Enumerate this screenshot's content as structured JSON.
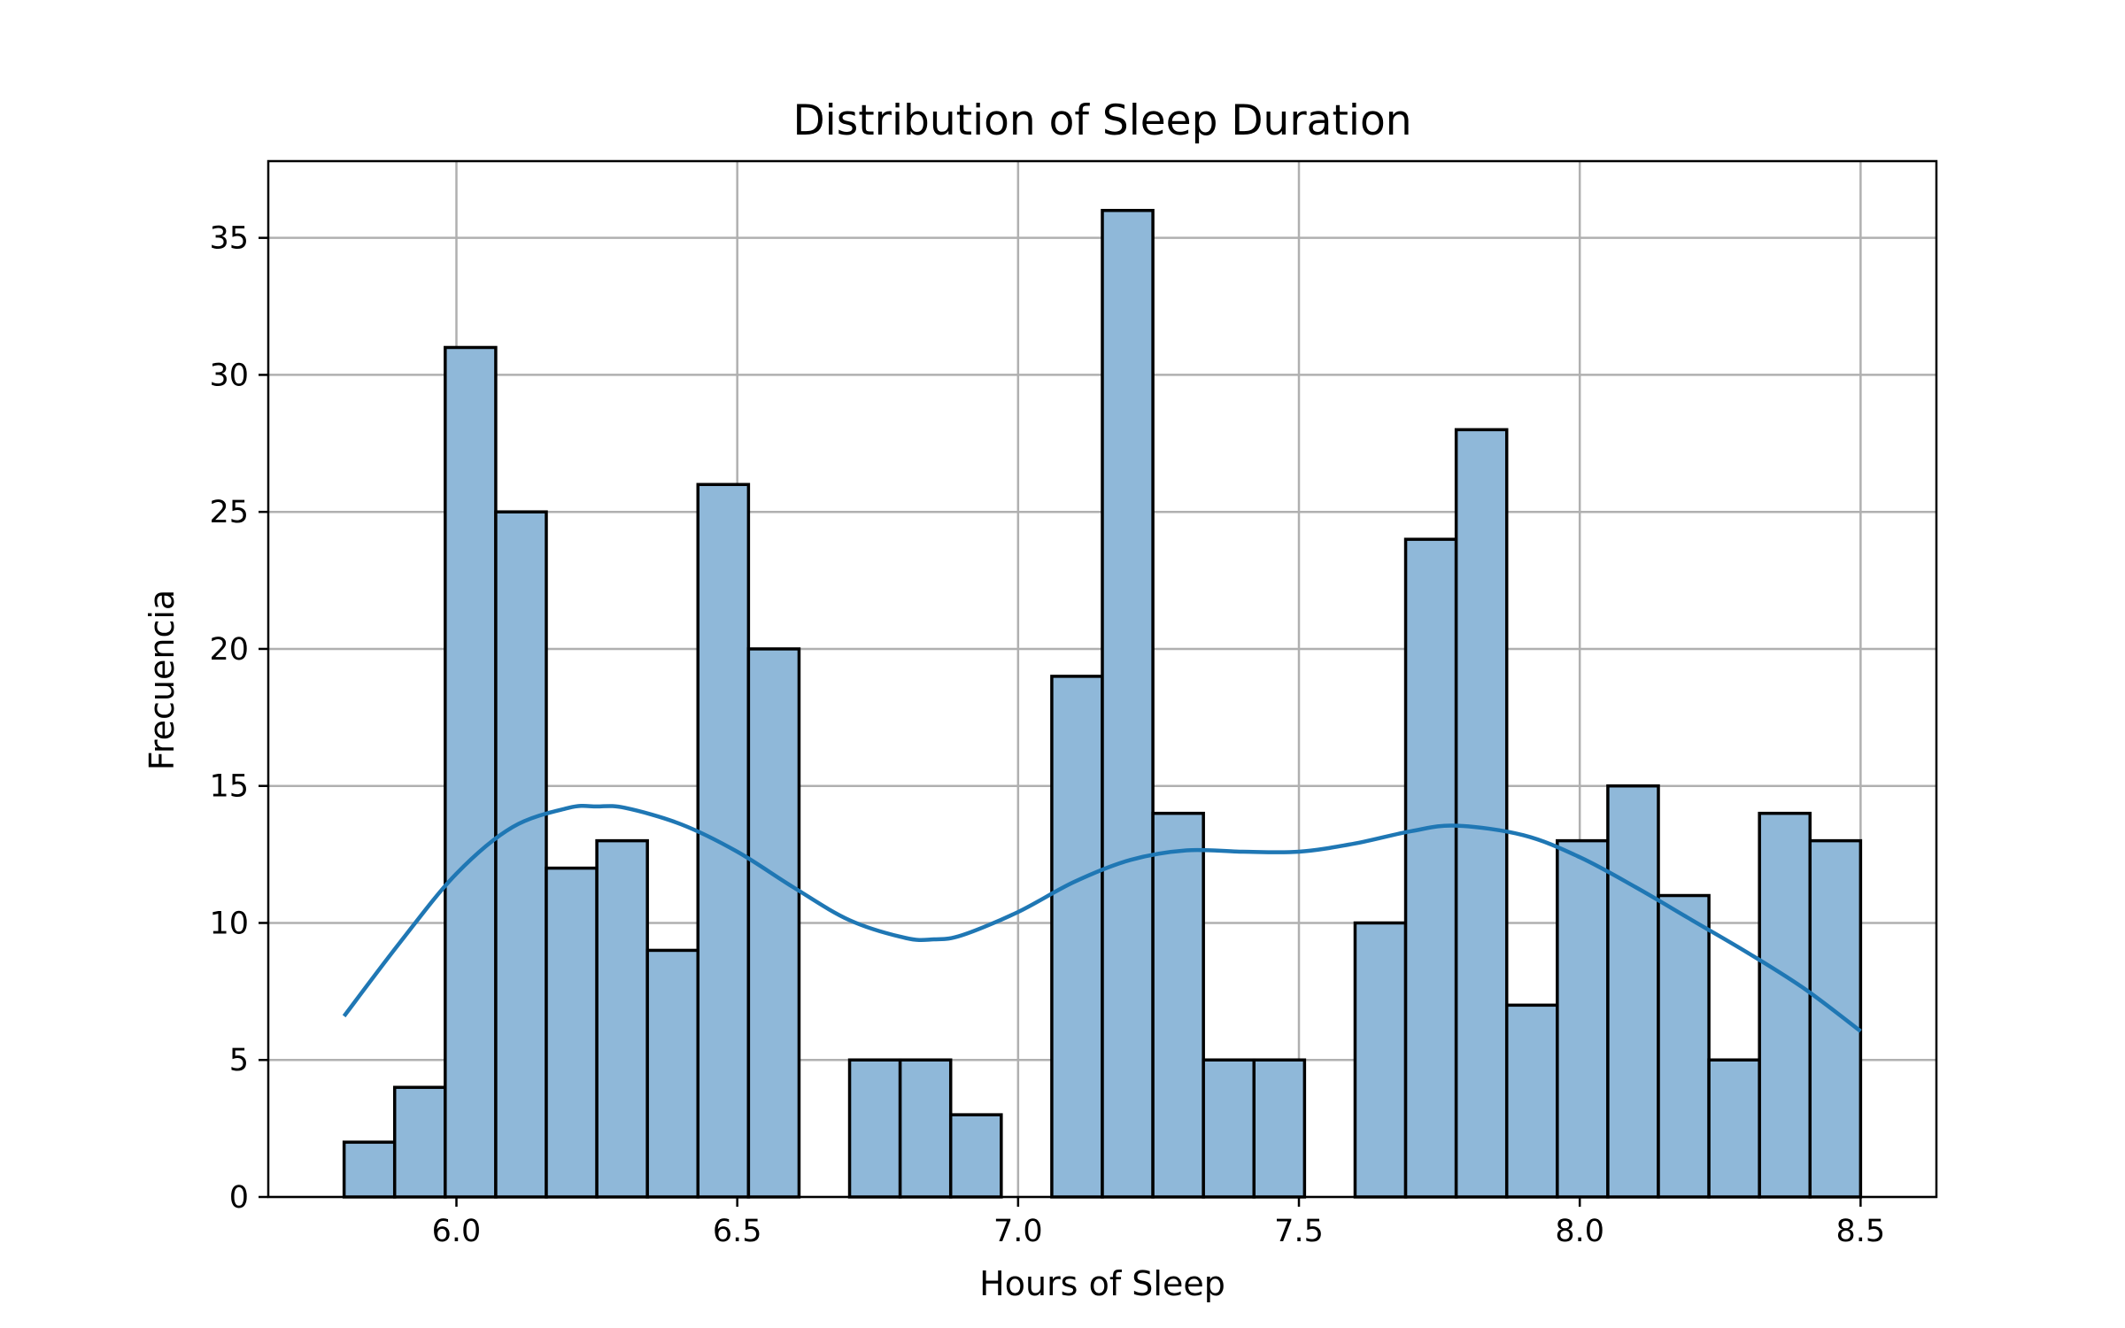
{
  "chart_data": {
    "type": "bar",
    "title": "Distribution of Sleep Duration",
    "xlabel": "Hours of Sleep",
    "ylabel": "Frecuencia",
    "xlim": [
      5.665,
      8.635
    ],
    "ylim": [
      0,
      37.8
    ],
    "grid": true,
    "bin_start": 5.8,
    "bin_width": 0.09,
    "bins": [
      {
        "x": 5.845,
        "count": 2
      },
      {
        "x": 5.935,
        "count": 4
      },
      {
        "x": 6.025,
        "count": 31
      },
      {
        "x": 6.115,
        "count": 25
      },
      {
        "x": 6.205,
        "count": 12
      },
      {
        "x": 6.295,
        "count": 13
      },
      {
        "x": 6.385,
        "count": 9
      },
      {
        "x": 6.475,
        "count": 26
      },
      {
        "x": 6.565,
        "count": 20
      },
      {
        "x": 6.655,
        "count": 0
      },
      {
        "x": 6.745,
        "count": 5
      },
      {
        "x": 6.835,
        "count": 5
      },
      {
        "x": 6.925,
        "count": 3
      },
      {
        "x": 7.015,
        "count": 0
      },
      {
        "x": 7.105,
        "count": 19
      },
      {
        "x": 7.195,
        "count": 36
      },
      {
        "x": 7.285,
        "count": 14
      },
      {
        "x": 7.375,
        "count": 5
      },
      {
        "x": 7.465,
        "count": 5
      },
      {
        "x": 7.555,
        "count": 0
      },
      {
        "x": 7.645,
        "count": 10
      },
      {
        "x": 7.735,
        "count": 24
      },
      {
        "x": 7.825,
        "count": 28
      },
      {
        "x": 7.915,
        "count": 7
      },
      {
        "x": 8.005,
        "count": 13
      },
      {
        "x": 8.095,
        "count": 15
      },
      {
        "x": 8.185,
        "count": 11
      },
      {
        "x": 8.275,
        "count": 5
      },
      {
        "x": 8.365,
        "count": 14
      },
      {
        "x": 8.455,
        "count": 13
      }
    ],
    "kde": [
      {
        "x": 5.8,
        "y": 6.6
      },
      {
        "x": 5.9,
        "y": 9.3
      },
      {
        "x": 6.0,
        "y": 11.8
      },
      {
        "x": 6.1,
        "y": 13.5
      },
      {
        "x": 6.2,
        "y": 14.2
      },
      {
        "x": 6.25,
        "y": 14.25
      },
      {
        "x": 6.3,
        "y": 14.2
      },
      {
        "x": 6.4,
        "y": 13.6
      },
      {
        "x": 6.5,
        "y": 12.6
      },
      {
        "x": 6.6,
        "y": 11.3
      },
      {
        "x": 6.7,
        "y": 10.1
      },
      {
        "x": 6.8,
        "y": 9.45
      },
      {
        "x": 6.85,
        "y": 9.4
      },
      {
        "x": 6.9,
        "y": 9.55
      },
      {
        "x": 7.0,
        "y": 10.4
      },
      {
        "x": 7.1,
        "y": 11.5
      },
      {
        "x": 7.2,
        "y": 12.3
      },
      {
        "x": 7.3,
        "y": 12.65
      },
      {
        "x": 7.4,
        "y": 12.6
      },
      {
        "x": 7.5,
        "y": 12.6
      },
      {
        "x": 7.6,
        "y": 12.9
      },
      {
        "x": 7.7,
        "y": 13.35
      },
      {
        "x": 7.78,
        "y": 13.55
      },
      {
        "x": 7.9,
        "y": 13.2
      },
      {
        "x": 8.0,
        "y": 12.4
      },
      {
        "x": 8.1,
        "y": 11.3
      },
      {
        "x": 8.2,
        "y": 10.1
      },
      {
        "x": 8.3,
        "y": 8.9
      },
      {
        "x": 8.4,
        "y": 7.6
      },
      {
        "x": 8.5,
        "y": 6.05
      }
    ],
    "xticks": [
      {
        "value": 6.0,
        "label": "6.0"
      },
      {
        "value": 6.5,
        "label": "6.5"
      },
      {
        "value": 7.0,
        "label": "7.0"
      },
      {
        "value": 7.5,
        "label": "7.5"
      },
      {
        "value": 8.0,
        "label": "8.0"
      },
      {
        "value": 8.5,
        "label": "8.5"
      }
    ],
    "yticks": [
      {
        "value": 0,
        "label": "0"
      },
      {
        "value": 5,
        "label": "5"
      },
      {
        "value": 10,
        "label": "10"
      },
      {
        "value": 15,
        "label": "15"
      },
      {
        "value": 20,
        "label": "20"
      },
      {
        "value": 25,
        "label": "25"
      },
      {
        "value": 30,
        "label": "30"
      },
      {
        "value": 35,
        "label": "35"
      }
    ],
    "colors": {
      "bar_fill": "#8fb8d9",
      "bar_edge": "#000000",
      "kde_line": "#1f77b4",
      "grid": "#b0b0b0"
    }
  }
}
